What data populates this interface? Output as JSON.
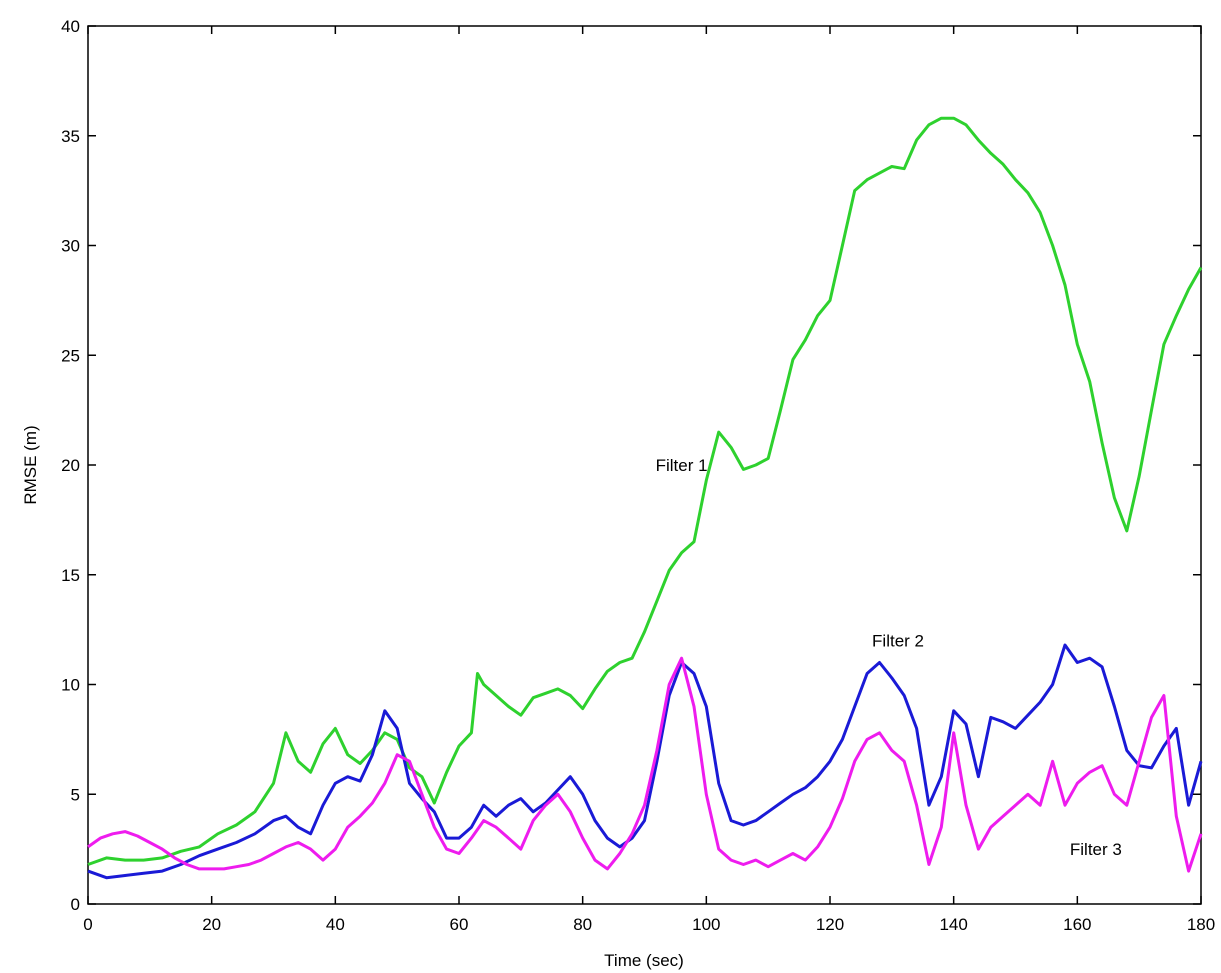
{
  "chart_data": {
    "type": "line",
    "xlabel": "Time (sec)",
    "ylabel": "RMSE (m)",
    "xlim": [
      0,
      180
    ],
    "ylim": [
      0,
      40
    ],
    "xticks": [
      0,
      20,
      40,
      60,
      80,
      100,
      120,
      140,
      160,
      180
    ],
    "yticks": [
      0,
      5,
      10,
      15,
      20,
      25,
      30,
      35,
      40
    ],
    "grid": false,
    "legend": "none",
    "annotations": [
      {
        "text": "Filter 1",
        "x": 96,
        "y": 20
      },
      {
        "text": "Filter 2",
        "x": 131,
        "y": 12
      },
      {
        "text": "Filter 3",
        "x": 163,
        "y": 2.5
      }
    ],
    "series": [
      {
        "color": "#2ed12e",
        "x": [
          0,
          3,
          6,
          9,
          12,
          15,
          18,
          21,
          24,
          27,
          30,
          32,
          34,
          36,
          38,
          40,
          42,
          44,
          46,
          48,
          50,
          52,
          54,
          56,
          58,
          60,
          62,
          63,
          64,
          66,
          68,
          70,
          72,
          74,
          76,
          78,
          80,
          82,
          84,
          86,
          88,
          90,
          92,
          94,
          96,
          98,
          100,
          102,
          104,
          106,
          108,
          110,
          112,
          114,
          116,
          118,
          120,
          122,
          124,
          126,
          128,
          130,
          132,
          134,
          136,
          138,
          140,
          142,
          144,
          146,
          148,
          150,
          152,
          154,
          156,
          158,
          160,
          162,
          164,
          166,
          168,
          170,
          172,
          174,
          176,
          178,
          180
        ],
        "y": [
          1.8,
          2.1,
          2.0,
          2.0,
          2.1,
          2.4,
          2.6,
          3.2,
          3.6,
          4.2,
          5.5,
          7.8,
          6.5,
          6.0,
          7.3,
          8.0,
          6.8,
          6.4,
          7.0,
          7.8,
          7.5,
          6.2,
          5.8,
          4.6,
          6.0,
          7.2,
          7.8,
          10.5,
          10.0,
          9.5,
          9.0,
          8.6,
          9.4,
          9.6,
          9.8,
          9.5,
          8.9,
          9.8,
          10.6,
          11.0,
          11.2,
          12.4,
          13.8,
          15.2,
          16.0,
          16.5,
          19.3,
          21.5,
          20.8,
          19.8,
          20.0,
          20.3,
          22.5,
          24.8,
          25.7,
          26.8,
          27.5,
          30.0,
          32.5,
          33.0,
          33.3,
          33.6,
          33.5,
          34.8,
          35.5,
          35.8,
          35.8,
          35.5,
          34.8,
          34.2,
          33.7,
          33.0,
          32.4,
          31.5,
          30.0,
          28.2,
          25.5,
          23.8,
          21.0,
          18.5,
          17.0,
          19.5,
          22.5,
          25.5,
          26.8,
          28.0,
          29.0
        ]
      },
      {
        "color": "#1a1ad6",
        "x": [
          0,
          3,
          6,
          9,
          12,
          15,
          18,
          21,
          24,
          27,
          30,
          32,
          34,
          36,
          38,
          40,
          42,
          44,
          46,
          48,
          50,
          52,
          54,
          56,
          58,
          60,
          62,
          64,
          66,
          68,
          70,
          72,
          74,
          76,
          78,
          80,
          82,
          84,
          86,
          88,
          90,
          92,
          94,
          96,
          98,
          100,
          102,
          104,
          106,
          108,
          110,
          112,
          114,
          116,
          118,
          120,
          122,
          124,
          126,
          128,
          130,
          132,
          134,
          136,
          138,
          140,
          142,
          144,
          146,
          148,
          150,
          152,
          154,
          156,
          158,
          160,
          162,
          164,
          166,
          168,
          170,
          172,
          174,
          176,
          178,
          180
        ],
        "y": [
          1.5,
          1.2,
          1.3,
          1.4,
          1.5,
          1.8,
          2.2,
          2.5,
          2.8,
          3.2,
          3.8,
          4.0,
          3.5,
          3.2,
          4.5,
          5.5,
          5.8,
          5.6,
          6.8,
          8.8,
          8.0,
          5.5,
          4.8,
          4.2,
          3.0,
          3.0,
          3.5,
          4.5,
          4.0,
          4.5,
          4.8,
          4.2,
          4.6,
          5.2,
          5.8,
          5.0,
          3.8,
          3.0,
          2.6,
          3.0,
          3.8,
          6.5,
          9.5,
          11.0,
          10.5,
          9.0,
          5.5,
          3.8,
          3.6,
          3.8,
          4.2,
          4.6,
          5.0,
          5.3,
          5.8,
          6.5,
          7.5,
          9.0,
          10.5,
          11.0,
          10.3,
          9.5,
          8.0,
          4.5,
          5.8,
          8.8,
          8.2,
          5.8,
          8.5,
          8.3,
          8.0,
          8.6,
          9.2,
          10.0,
          11.8,
          11.0,
          11.2,
          10.8,
          9.0,
          7.0,
          6.3,
          6.2,
          7.2,
          8.0,
          4.5,
          6.5
        ]
      },
      {
        "color": "#ee1cee",
        "x": [
          0,
          2,
          4,
          6,
          8,
          10,
          12,
          14,
          16,
          18,
          20,
          22,
          24,
          26,
          28,
          30,
          32,
          34,
          36,
          38,
          40,
          42,
          44,
          46,
          48,
          50,
          52,
          54,
          56,
          58,
          60,
          62,
          64,
          66,
          68,
          70,
          72,
          74,
          76,
          78,
          80,
          82,
          84,
          86,
          88,
          90,
          92,
          94,
          96,
          98,
          100,
          102,
          104,
          106,
          108,
          110,
          112,
          114,
          116,
          118,
          120,
          122,
          124,
          126,
          128,
          130,
          132,
          134,
          136,
          138,
          140,
          142,
          144,
          146,
          148,
          150,
          152,
          154,
          156,
          158,
          160,
          162,
          164,
          166,
          168,
          170,
          172,
          174,
          176,
          178,
          180
        ],
        "y": [
          2.6,
          3.0,
          3.2,
          3.3,
          3.1,
          2.8,
          2.5,
          2.1,
          1.8,
          1.6,
          1.6,
          1.6,
          1.7,
          1.8,
          2.0,
          2.3,
          2.6,
          2.8,
          2.5,
          2.0,
          2.5,
          3.5,
          4.0,
          4.6,
          5.5,
          6.8,
          6.5,
          5.0,
          3.5,
          2.5,
          2.3,
          3.0,
          3.8,
          3.5,
          3.0,
          2.5,
          3.8,
          4.5,
          5.0,
          4.2,
          3.0,
          2.0,
          1.6,
          2.3,
          3.2,
          4.5,
          7.0,
          10.0,
          11.2,
          9.0,
          5.0,
          2.5,
          2.0,
          1.8,
          2.0,
          1.7,
          2.0,
          2.3,
          2.0,
          2.6,
          3.5,
          4.8,
          6.5,
          7.5,
          7.8,
          7.0,
          6.5,
          4.5,
          1.8,
          3.5,
          7.8,
          4.5,
          2.5,
          3.5,
          4.0,
          4.5,
          5.0,
          4.5,
          6.5,
          4.5,
          5.5,
          6.0,
          6.3,
          5.0,
          4.5,
          6.5,
          8.5,
          9.5,
          4.0,
          1.5,
          3.2
        ]
      }
    ]
  }
}
